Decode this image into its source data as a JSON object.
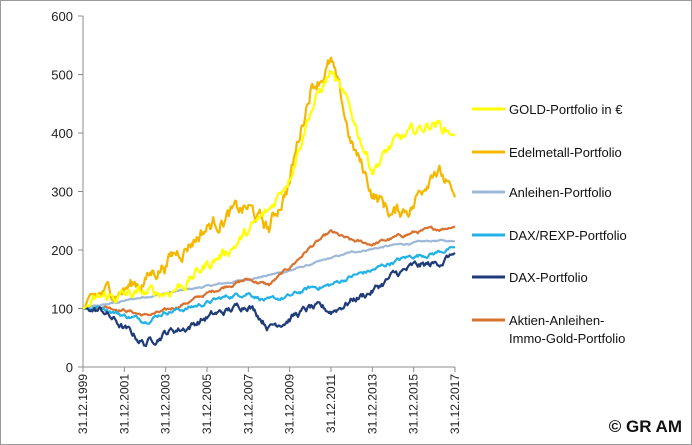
{
  "chart_data": {
    "type": "line",
    "title": "",
    "xlabel": "",
    "ylabel": "",
    "ylim": [
      0,
      600
    ],
    "yticks": [
      0,
      100,
      200,
      300,
      400,
      500,
      600
    ],
    "x": [
      1999,
      2000,
      2001,
      2002,
      2003,
      2004,
      2005,
      2006,
      2007,
      2008,
      2009,
      2010,
      2011,
      2012,
      2013,
      2014,
      2015,
      2016,
      2017
    ],
    "xtick_labels": [
      "31.12.1999",
      "31.12.2001",
      "31.12.2003",
      "31.12.2005",
      "31.12.2007",
      "31.12.2009",
      "31.12.2011",
      "31.12.2013",
      "31.12.2015",
      "31.12.2017"
    ],
    "xtick_years": [
      1999,
      2001,
      2003,
      2005,
      2007,
      2009,
      2011,
      2013,
      2015,
      2017
    ],
    "grid": false,
    "legend_position": "right",
    "series": [
      {
        "name": "GOLD-Portfolio in €",
        "color": "#ffff00",
        "noise": 10,
        "values": [
          100,
          118,
          122,
          125,
          128,
          145,
          175,
          200,
          230,
          265,
          330,
          440,
          505,
          430,
          340,
          380,
          400,
          420,
          395
        ]
      },
      {
        "name": "Edelmetall-Portfolio",
        "color": "#f5b800",
        "noise": 14,
        "values": [
          100,
          125,
          135,
          150,
          180,
          210,
          240,
          260,
          270,
          235,
          320,
          480,
          520,
          380,
          300,
          260,
          280,
          350,
          290
        ]
      },
      {
        "name": "Anleihen-Portfolio",
        "color": "#9fb8d8",
        "noise": 1.5,
        "values": [
          100,
          106,
          113,
          120,
          126,
          132,
          138,
          144,
          150,
          157,
          165,
          175,
          186,
          196,
          202,
          208,
          212,
          216,
          215
        ]
      },
      {
        "name": "DAX/REXP-Portfolio",
        "color": "#22b2e6",
        "noise": 4,
        "values": [
          100,
          102,
          88,
          80,
          95,
          100,
          110,
          120,
          128,
          112,
          120,
          135,
          140,
          155,
          165,
          180,
          190,
          195,
          205
        ]
      },
      {
        "name": "DAX-Portfolio",
        "color": "#1f3c78",
        "noise": 7,
        "values": [
          100,
          95,
          65,
          40,
          60,
          68,
          85,
          95,
          110,
          70,
          85,
          100,
          95,
          115,
          130,
          155,
          170,
          175,
          195
        ]
      },
      {
        "name": "Aktien-Anleihen-Immo-Gold-Portfolio",
        "name_lines": [
          "Aktien-Anleihen-",
          "Immo-Gold-Portfolio"
        ],
        "color": "#d9722e",
        "noise": 3,
        "values": [
          100,
          104,
          98,
          88,
          95,
          110,
          125,
          140,
          150,
          140,
          170,
          205,
          230,
          215,
          210,
          220,
          230,
          235,
          240
        ]
      }
    ]
  },
  "copyright": "© GR AM"
}
